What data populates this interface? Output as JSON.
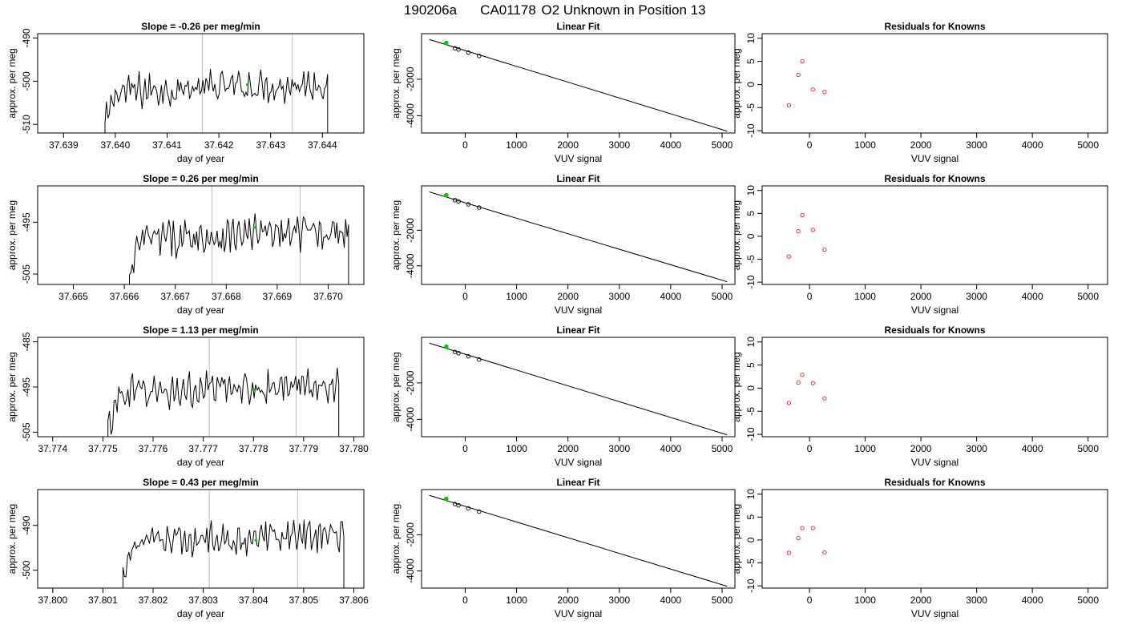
{
  "figure": {
    "title_parts": [
      "190206a",
      "CA01178",
      "O2 Unknown in Position  13"
    ]
  },
  "colors": {
    "trace": "#000000",
    "marker": "#00cc00",
    "residual": "#d62728",
    "vline": "#bdbdbd",
    "axis": "#000000"
  },
  "chart_data": [
    {
      "type": "line",
      "panel": "timeseries",
      "row": 1,
      "title": "Slope =  -0.26  per meg/min",
      "xlabel": "day of year",
      "ylabel": "approx. per meg",
      "xlim": [
        37.6385,
        37.6448
      ],
      "ylim": [
        -512,
        -489
      ],
      "xticks": [
        "37.639",
        "37.640",
        "37.641",
        "37.642",
        "37.643",
        "37.644"
      ],
      "yticks": [
        "-490",
        "-500",
        "-510"
      ],
      "trace_start": 37.6398,
      "trace_end": 37.6441,
      "trace_level": -501.5,
      "trace_amplitude": 3.2,
      "vlines": [
        37.64168,
        37.64342
      ],
      "marker": {
        "x": 37.64255,
        "y": -500.8
      }
    },
    {
      "type": "line",
      "panel": "linear-fit",
      "row": 1,
      "title": "Linear Fit",
      "xlabel": "VUV signal",
      "ylabel": "approx. per meg",
      "xlim": [
        -850,
        5250
      ],
      "ylim": [
        -4950,
        500
      ],
      "xticks": [
        "0",
        "1000",
        "2000",
        "3000",
        "4000",
        "5000"
      ],
      "yticks": [
        "-2000",
        "-4000"
      ],
      "fit_line": {
        "x": [
          -700,
          5100
        ],
        "y": [
          180,
          -4850
        ]
      },
      "points": [
        [
          -200,
          -300
        ],
        [
          -130,
          -370
        ],
        [
          60,
          -540
        ],
        [
          270,
          -720
        ]
      ],
      "marker": {
        "x": -370,
        "y": -10
      }
    },
    {
      "type": "scatter",
      "panel": "residuals",
      "row": 1,
      "title": "Residuals for Knowns",
      "xlabel": "VUV signal",
      "ylabel": "approx. per meg",
      "xlim": [
        -850,
        5350
      ],
      "ylim": [
        -10.5,
        11
      ],
      "xticks": [
        "0",
        "1000",
        "2000",
        "3000",
        "4000",
        "5000"
      ],
      "yticks": [
        "10",
        "5",
        "0",
        "-5",
        "-10"
      ],
      "points": [
        [
          -370,
          -4.5
        ],
        [
          -200,
          2.1
        ],
        [
          -130,
          5.0
        ],
        [
          60,
          -1.1
        ],
        [
          270,
          -1.6
        ]
      ]
    },
    {
      "type": "line",
      "panel": "timeseries",
      "row": 2,
      "title": "Slope =  0.26  per meg/min",
      "xlabel": "day of year",
      "ylabel": "approx. per meg",
      "xlim": [
        37.6643,
        37.6707
      ],
      "ylim": [
        -507,
        -488
      ],
      "xticks": [
        "37.665",
        "37.666",
        "37.667",
        "37.668",
        "37.669",
        "37.670"
      ],
      "yticks": [
        "-495",
        "-505"
      ],
      "trace_start": 37.6661,
      "trace_end": 37.6704,
      "trace_level": -497.5,
      "trace_amplitude": 2.8,
      "vlines": [
        37.66772,
        37.66945
      ],
      "marker": {
        "x": 37.66855,
        "y": -496.0
      }
    },
    {
      "type": "line",
      "panel": "linear-fit",
      "row": 2,
      "title": "Linear Fit",
      "xlabel": "VUV signal",
      "ylabel": "approx. per meg",
      "xlim": [
        -850,
        5250
      ],
      "ylim": [
        -5050,
        500
      ],
      "xticks": [
        "0",
        "1000",
        "2000",
        "3000",
        "4000",
        "5000"
      ],
      "yticks": [
        "-2000",
        "-4000"
      ],
      "fit_line": {
        "x": [
          -700,
          5100
        ],
        "y": [
          160,
          -4900
        ]
      },
      "points": [
        [
          -200,
          -300
        ],
        [
          -130,
          -370
        ],
        [
          60,
          -540
        ],
        [
          270,
          -720
        ]
      ],
      "marker": {
        "x": -370,
        "y": -20
      }
    },
    {
      "type": "scatter",
      "panel": "residuals",
      "row": 2,
      "title": "Residuals for Knowns",
      "xlabel": "VUV signal",
      "ylabel": "approx. per meg",
      "xlim": [
        -850,
        5350
      ],
      "ylim": [
        -10.5,
        11
      ],
      "xticks": [
        "0",
        "1000",
        "2000",
        "3000",
        "4000",
        "5000"
      ],
      "yticks": [
        "10",
        "5",
        "0",
        "-5",
        "-10"
      ],
      "points": [
        [
          -370,
          -4.4
        ],
        [
          -200,
          1.1
        ],
        [
          -130,
          4.6
        ],
        [
          60,
          1.4
        ],
        [
          270,
          -2.9
        ]
      ]
    },
    {
      "type": "line",
      "panel": "timeseries",
      "row": 3,
      "title": "Slope =  1.13  per meg/min",
      "xlabel": "day of year",
      "ylabel": "approx. per meg",
      "xlim": [
        37.7737,
        37.7802
      ],
      "ylim": [
        -506,
        -484
      ],
      "xticks": [
        "37.774",
        "37.775",
        "37.776",
        "37.777",
        "37.778",
        "37.779",
        "37.780"
      ],
      "yticks": [
        "-485",
        "-495",
        "-505"
      ],
      "trace_start": 37.7751,
      "trace_end": 37.7797,
      "trace_level": -495.5,
      "trace_amplitude": 3.0,
      "vlines": [
        37.77712,
        37.77885
      ],
      "marker": {
        "x": 37.778,
        "y": -495.5
      }
    },
    {
      "type": "line",
      "panel": "linear-fit",
      "row": 3,
      "title": "Linear Fit",
      "xlabel": "VUV signal",
      "ylabel": "approx. per meg",
      "xlim": [
        -850,
        5250
      ],
      "ylim": [
        -4950,
        500
      ],
      "xticks": [
        "0",
        "1000",
        "2000",
        "3000",
        "4000",
        "5000"
      ],
      "yticks": [
        "-2000",
        "-4000"
      ],
      "fit_line": {
        "x": [
          -700,
          5100
        ],
        "y": [
          180,
          -4850
        ]
      },
      "points": [
        [
          -200,
          -300
        ],
        [
          -130,
          -370
        ],
        [
          60,
          -540
        ],
        [
          270,
          -720
        ]
      ],
      "marker": {
        "x": -370,
        "y": -10
      }
    },
    {
      "type": "scatter",
      "panel": "residuals",
      "row": 3,
      "title": "Residuals for Knowns",
      "xlabel": "VUV signal",
      "ylabel": "approx. per meg",
      "xlim": [
        -850,
        5350
      ],
      "ylim": [
        -10.5,
        11
      ],
      "xticks": [
        "0",
        "1000",
        "2000",
        "3000",
        "4000",
        "5000"
      ],
      "yticks": [
        "10",
        "5",
        "0",
        "-5",
        "-10"
      ],
      "points": [
        [
          -370,
          -3.2
        ],
        [
          -200,
          1.2
        ],
        [
          -130,
          2.9
        ],
        [
          60,
          1.1
        ],
        [
          270,
          -2.2
        ]
      ]
    },
    {
      "type": "line",
      "panel": "timeseries",
      "row": 4,
      "title": "Slope =  0.43  per meg/min",
      "xlabel": "day of year",
      "ylabel": "approx. per meg",
      "xlim": [
        37.7997,
        37.8062
      ],
      "ylim": [
        -504,
        -482
      ],
      "xticks": [
        "37.800",
        "37.801",
        "37.802",
        "37.803",
        "37.804",
        "37.805",
        "37.806"
      ],
      "yticks": [
        "-490",
        "-500"
      ],
      "trace_start": 37.8014,
      "trace_end": 37.8058,
      "trace_level": -493.0,
      "trace_amplitude": 2.9,
      "vlines": [
        37.80312,
        37.80488
      ],
      "marker": {
        "x": 37.80405,
        "y": -493.3
      }
    },
    {
      "type": "line",
      "panel": "linear-fit",
      "row": 4,
      "title": "Linear Fit",
      "xlabel": "VUV signal",
      "ylabel": "approx. per meg",
      "xlim": [
        -850,
        5250
      ],
      "ylim": [
        -4950,
        500
      ],
      "xticks": [
        "0",
        "1000",
        "2000",
        "3000",
        "4000",
        "5000"
      ],
      "yticks": [
        "-2000",
        "-4000"
      ],
      "fit_line": {
        "x": [
          -700,
          5100
        ],
        "y": [
          180,
          -4850
        ]
      },
      "points": [
        [
          -200,
          -300
        ],
        [
          -130,
          -370
        ],
        [
          60,
          -540
        ],
        [
          270,
          -720
        ]
      ],
      "marker": {
        "x": -370,
        "y": -10
      }
    },
    {
      "type": "scatter",
      "panel": "residuals",
      "row": 4,
      "title": "Residuals for Knowns",
      "xlabel": "VUV signal",
      "ylabel": "approx. per meg",
      "xlim": [
        -850,
        5350
      ],
      "ylim": [
        -10.5,
        11
      ],
      "xticks": [
        "0",
        "1000",
        "2000",
        "3000",
        "4000",
        "5000"
      ],
      "yticks": [
        "10",
        "5",
        "0",
        "-5",
        "-10"
      ],
      "points": [
        [
          -370,
          -2.8
        ],
        [
          -200,
          0.4
        ],
        [
          -130,
          2.6
        ],
        [
          60,
          2.6
        ],
        [
          270,
          -2.7
        ]
      ]
    }
  ]
}
